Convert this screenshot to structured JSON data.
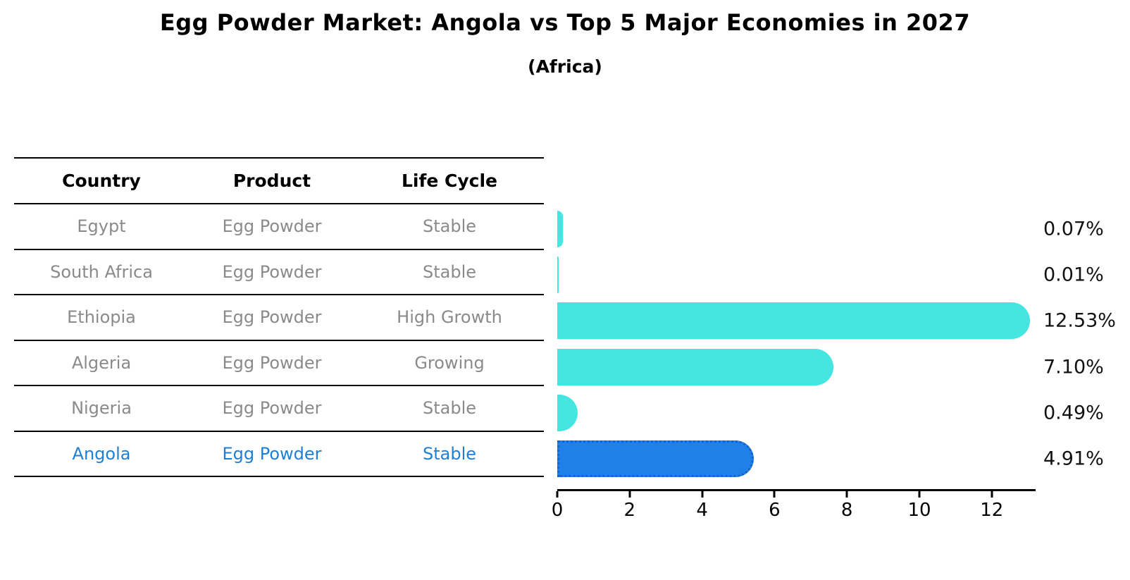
{
  "title": "Egg Powder Market: Angola vs Top 5 Major Economies in 2027",
  "subtitle": "(Africa)",
  "table": {
    "headers": [
      "Country",
      "Product",
      "Life Cycle"
    ],
    "rows": [
      {
        "country": "Egypt",
        "product": "Egg Powder",
        "life_cycle": "Stable",
        "highlight": false
      },
      {
        "country": "South Africa",
        "product": "Egg Powder",
        "life_cycle": "Stable",
        "highlight": false
      },
      {
        "country": "Ethiopia",
        "product": "Egg Powder",
        "life_cycle": "High Growth",
        "highlight": false
      },
      {
        "country": "Algeria",
        "product": "Egg Powder",
        "life_cycle": "Growing",
        "highlight": false
      },
      {
        "country": "Nigeria",
        "product": "Egg Powder",
        "life_cycle": "Stable",
        "highlight": false
      },
      {
        "country": "Angola",
        "product": "Egg Powder",
        "life_cycle": "Stable",
        "highlight": true
      }
    ]
  },
  "chart_data": {
    "type": "bar",
    "orientation": "horizontal",
    "title": "Egg Powder Market: Angola vs Top 5 Major Economies in 2027 (Africa)",
    "categories": [
      "Egypt",
      "South Africa",
      "Ethiopia",
      "Algeria",
      "Nigeria",
      "Angola"
    ],
    "values": [
      0.07,
      0.01,
      12.53,
      7.1,
      0.49,
      4.91
    ],
    "value_labels": [
      "0.07%",
      "0.01%",
      "12.53%",
      "7.10%",
      "0.49%",
      "4.91%"
    ],
    "x_ticks": [
      0,
      2,
      4,
      6,
      8,
      10,
      12
    ],
    "xlim": [
      0,
      13.2
    ],
    "grid": false,
    "legend": "none",
    "highlight_index": 5
  },
  "colors": {
    "bar": "#45E6E2",
    "highlight_bar": "#1E80E8",
    "highlight_border": "#1563C8",
    "highlight_text": "#1E7FD6",
    "row_text": "#8a8a8a",
    "axis": "#000000",
    "value_text": "#111111"
  }
}
